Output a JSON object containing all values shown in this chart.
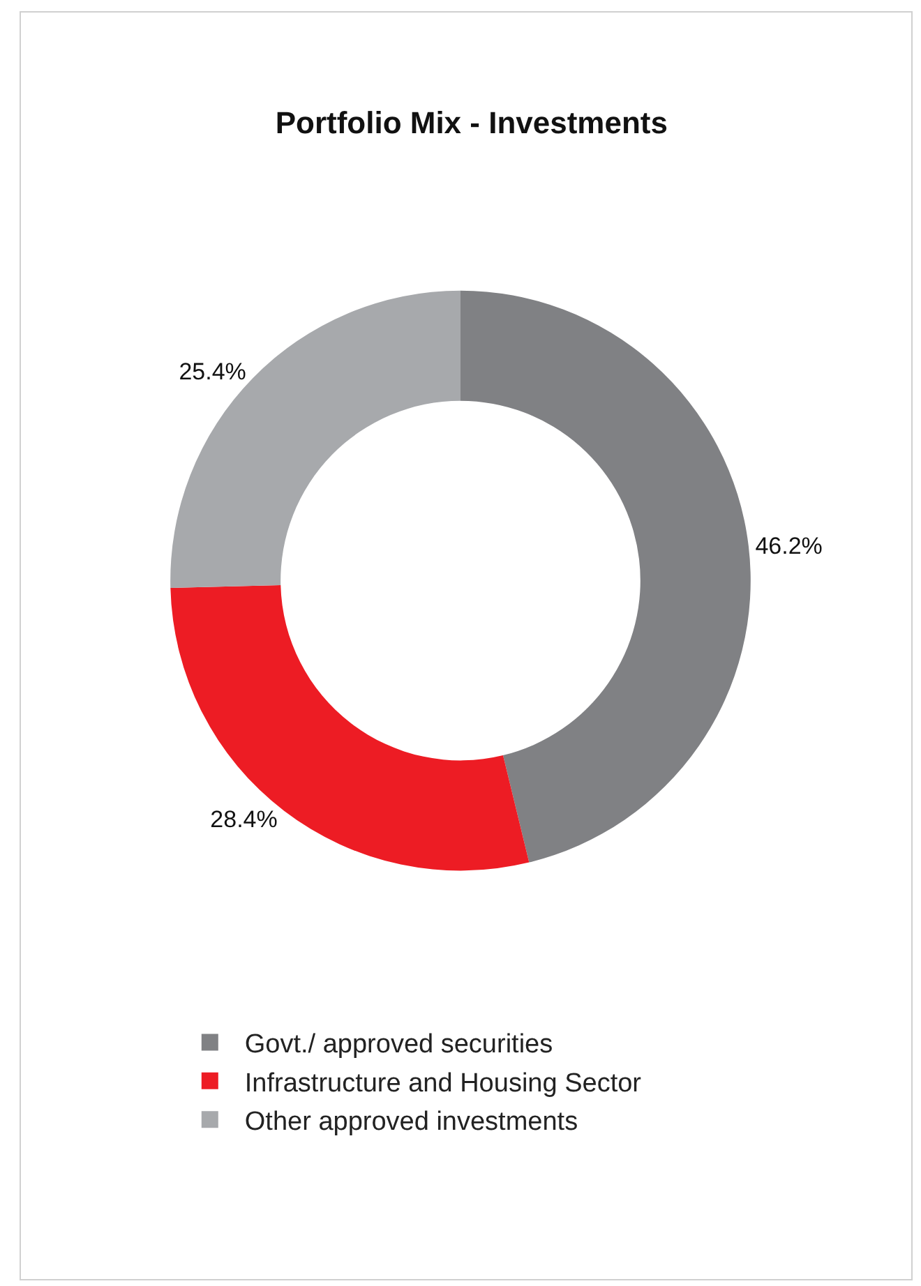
{
  "chart_data": {
    "type": "donut",
    "title": "Portfolio Mix - Investments",
    "categories": [
      "Govt./ approved securities",
      "Infrastructure and Housing Sector",
      "Other approved investments"
    ],
    "values": [
      46.2,
      28.4,
      25.4
    ],
    "colors": [
      "#808184",
      "#ed1c24",
      "#a7a9ac"
    ],
    "value_labels": [
      "46.2%",
      "28.4%",
      "25.4%"
    ],
    "legend": "bottom"
  }
}
